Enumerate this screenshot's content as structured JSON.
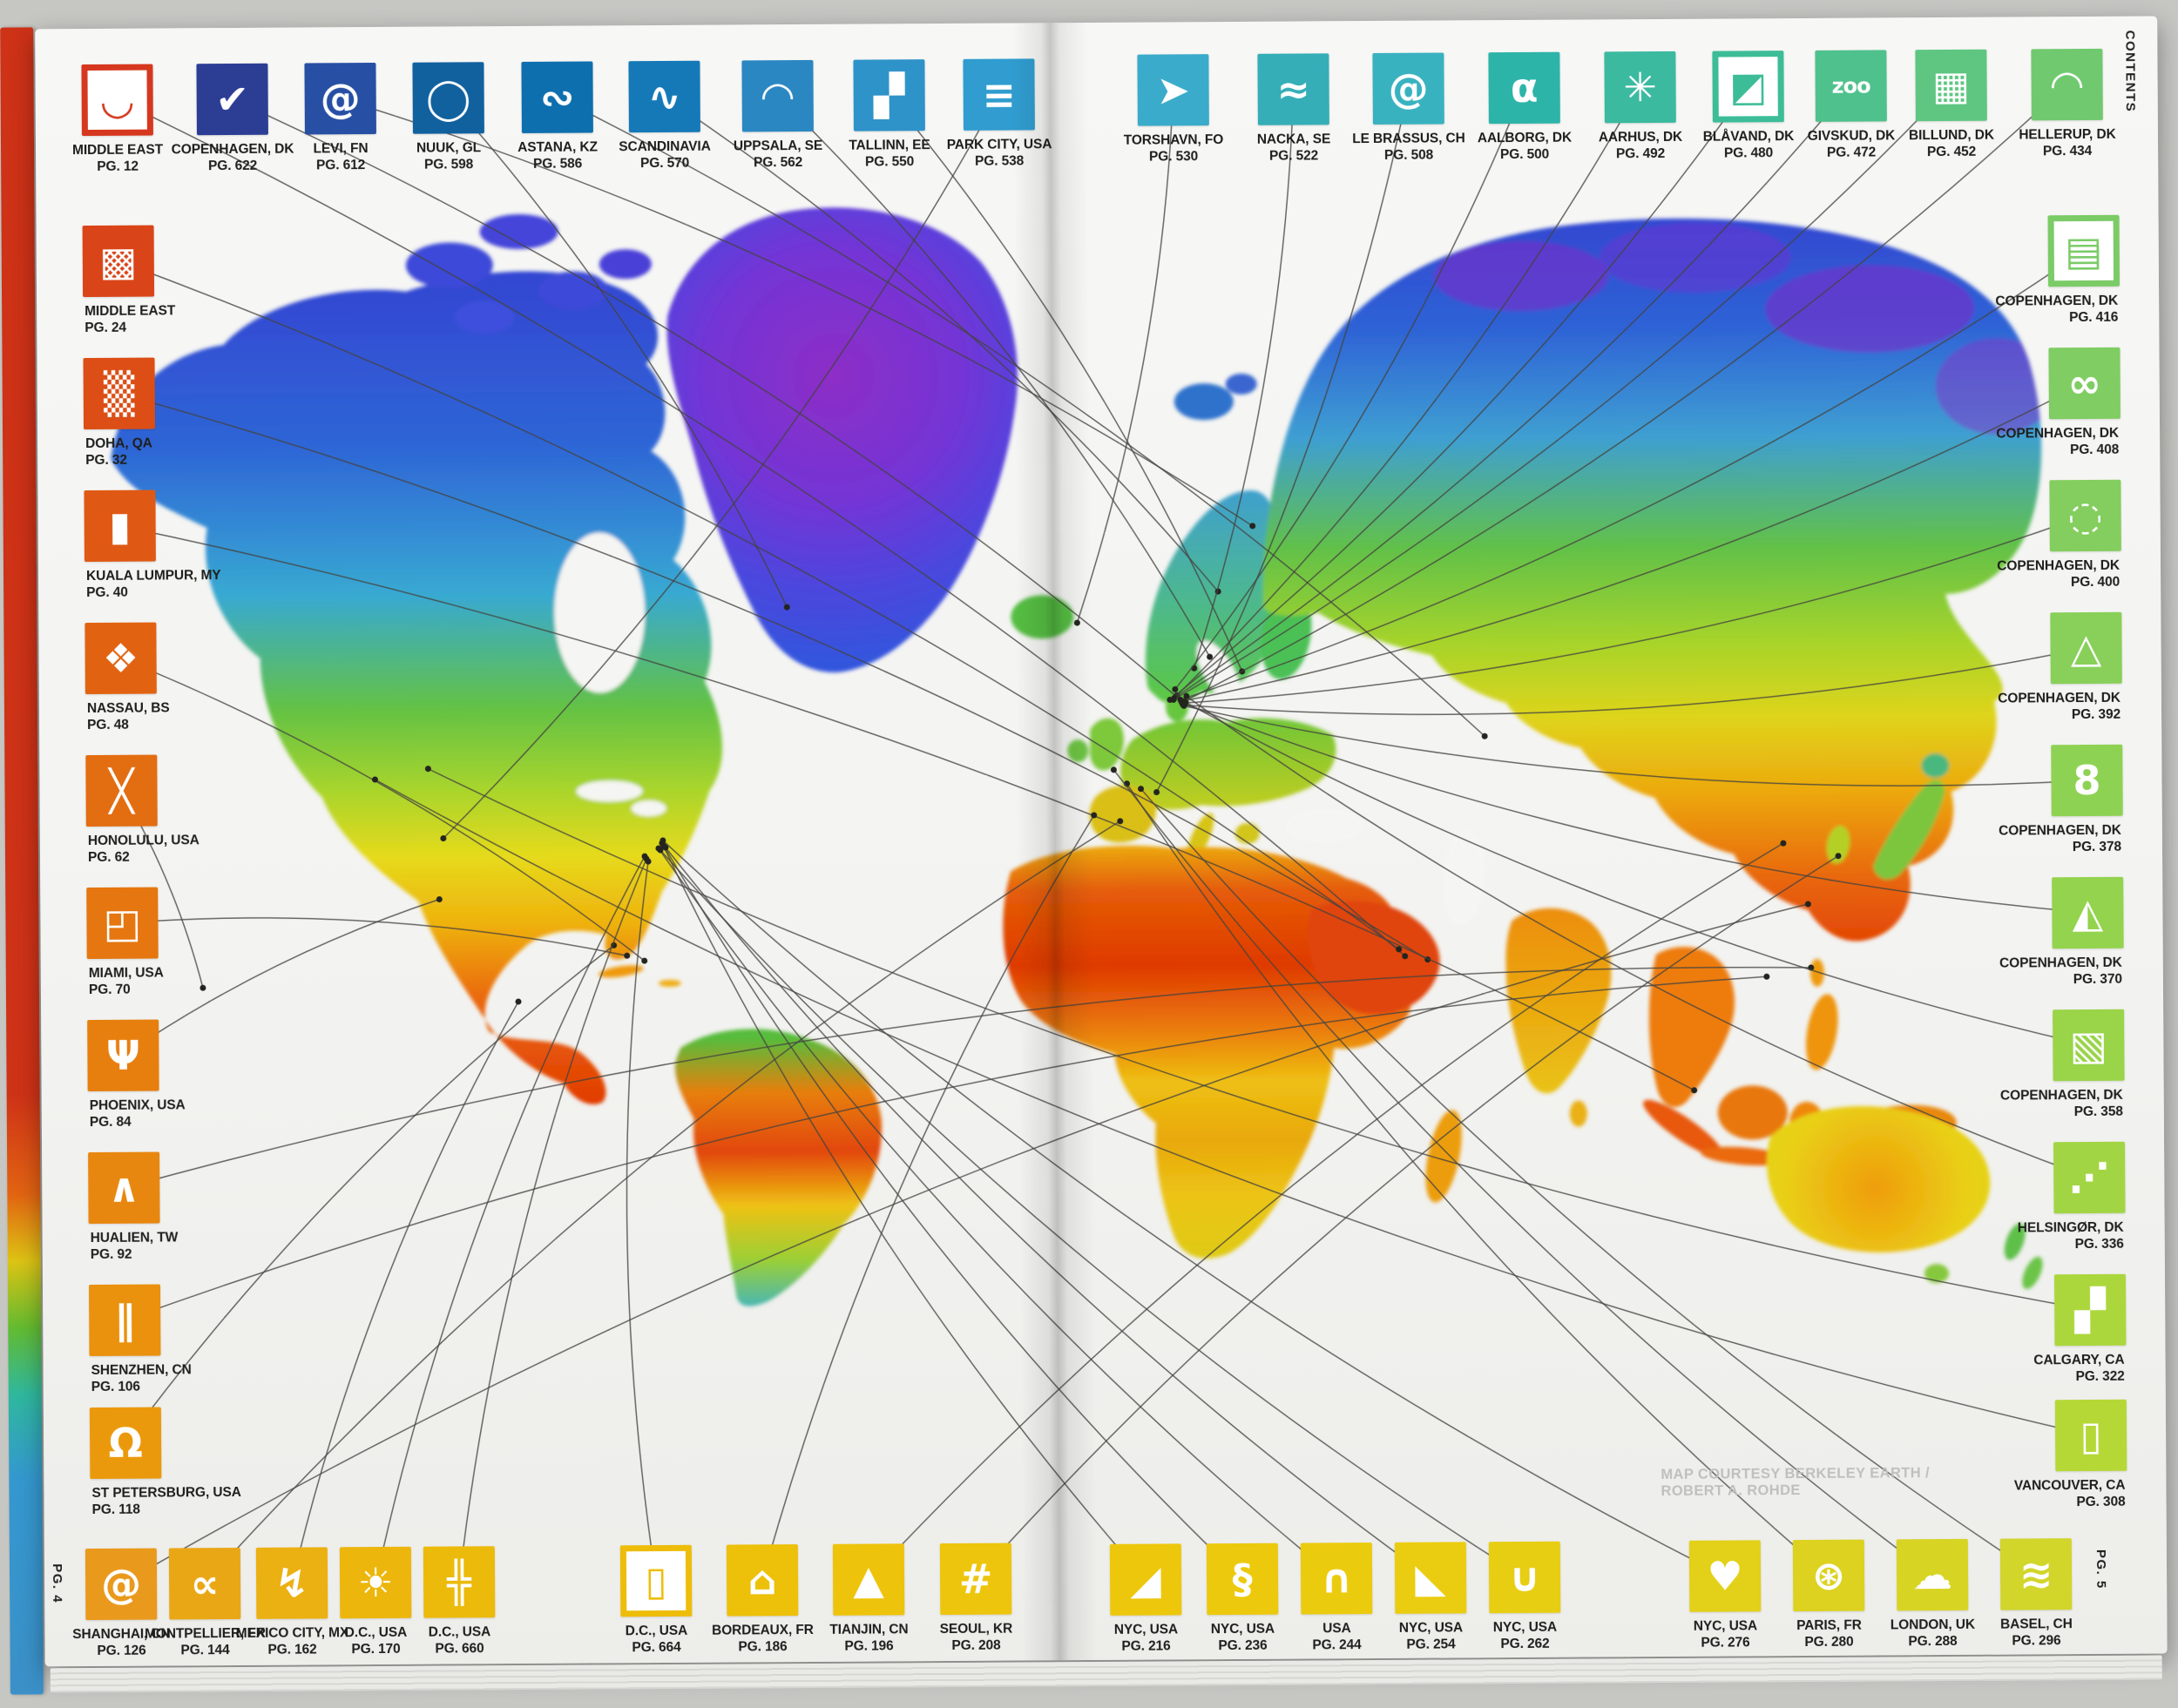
{
  "page": {
    "contents_label": "CONTENTS",
    "left_page_number": "PG. 4",
    "right_page_number": "PG. 5",
    "map_credit": "MAP COURTESY BERKELEY EARTH / ROBERT A. ROHDE"
  },
  "projects": {
    "top_left": [
      {
        "name": "middle-east-12",
        "city": "MIDDLE EAST",
        "page": "PG. 12",
        "color": "#d6381f",
        "glyph": "◡",
        "variant": "outline"
      },
      {
        "name": "copenhagen-622",
        "city": "COPENHAGEN, DK",
        "page": "PG. 622",
        "color": "#2c3e94",
        "glyph": "✔",
        "variant": "solid"
      },
      {
        "name": "levi-612",
        "city": "LEVI, FN",
        "page": "PG. 612",
        "color": "#274fa4",
        "glyph": "@",
        "variant": "solid"
      },
      {
        "name": "nuuk-598",
        "city": "NUUK, GL",
        "page": "PG. 598",
        "color": "#11619f",
        "glyph": "◯",
        "variant": "solid"
      },
      {
        "name": "astana-586",
        "city": "ASTANA, KZ",
        "page": "PG. 586",
        "color": "#0d6fae",
        "glyph": "∾",
        "variant": "solid"
      },
      {
        "name": "scandinavia-570",
        "city": "SCANDINAVIA",
        "page": "PG. 570",
        "color": "#1579b8",
        "glyph": "∿",
        "variant": "solid"
      },
      {
        "name": "uppsala-562",
        "city": "UPPSALA, SE",
        "page": "PG. 562",
        "color": "#2b87c2",
        "glyph": "◠",
        "variant": "solid"
      },
      {
        "name": "tallinn-550",
        "city": "TALLINN, EE",
        "page": "PG. 550",
        "color": "#2e93c9",
        "glyph": "▞",
        "variant": "solid"
      },
      {
        "name": "park-city-538",
        "city": "PARK CITY, USA",
        "page": "PG. 538",
        "color": "#309ccf",
        "glyph": "≡",
        "variant": "solid"
      }
    ],
    "top_right": [
      {
        "name": "torshavn-530",
        "city": "TORSHAVN, FO",
        "page": "PG. 530",
        "color": "#3aabca",
        "glyph": "➤",
        "variant": "solid"
      },
      {
        "name": "nacka-522",
        "city": "NACKA, SE",
        "page": "PG. 522",
        "color": "#35aeb7",
        "glyph": "≈",
        "variant": "solid"
      },
      {
        "name": "le-brassus-508",
        "city": "LE BRASSUS, CH",
        "page": "PG. 508",
        "color": "#39b2c0",
        "glyph": "@",
        "variant": "solid"
      },
      {
        "name": "aalborg-500",
        "city": "AALBORG, DK",
        "page": "PG. 500",
        "color": "#2db4a9",
        "glyph": "α",
        "variant": "solid"
      },
      {
        "name": "aarhus-492",
        "city": "AARHUS, DK",
        "page": "PG. 492",
        "color": "#3bbaa0",
        "glyph": "✳",
        "variant": "solid"
      },
      {
        "name": "blavand-480",
        "city": "BLÅVAND, DK",
        "page": "PG. 480",
        "color": "#3cbd97",
        "glyph": "◩",
        "variant": "outline"
      },
      {
        "name": "givskud-472",
        "city": "GIVSKUD, DK",
        "page": "PG. 472",
        "color": "#4fc18c",
        "glyph": "zoo",
        "variant": "solid"
      },
      {
        "name": "billund-452",
        "city": "BILLUND, DK",
        "page": "PG. 452",
        "color": "#5ec681",
        "glyph": "▦",
        "variant": "solid"
      },
      {
        "name": "hellerup-434",
        "city": "HELLERUP, DK",
        "page": "PG. 434",
        "color": "#70c96f",
        "glyph": "◠",
        "variant": "solid"
      }
    ],
    "left_column": [
      {
        "name": "middle-east-24",
        "city": "MIDDLE EAST",
        "page": "PG. 24",
        "color": "#da4419",
        "glyph": "▩",
        "variant": "solid"
      },
      {
        "name": "doha-32",
        "city": "DOHA, QA",
        "page": "PG. 32",
        "color": "#dc4e15",
        "glyph": "▒",
        "variant": "solid"
      },
      {
        "name": "kuala-lumpur-40",
        "city": "KUALA LUMPUR, MY",
        "page": "PG. 40",
        "color": "#df5915",
        "glyph": "▮",
        "variant": "solid"
      },
      {
        "name": "nassau-48",
        "city": "NASSAU, BS",
        "page": "PG. 48",
        "color": "#e16312",
        "glyph": "❖",
        "variant": "solid"
      },
      {
        "name": "honolulu-62",
        "city": "HONOLULU, USA",
        "page": "PG. 62",
        "color": "#e36d11",
        "glyph": "╳",
        "variant": "solid"
      },
      {
        "name": "miami-70",
        "city": "MIAMI, USA",
        "page": "PG. 70",
        "color": "#e57610",
        "glyph": "◰",
        "variant": "solid"
      },
      {
        "name": "phoenix-84",
        "city": "PHOENIX, USA",
        "page": "PG. 84",
        "color": "#e77f0e",
        "glyph": "Ψ",
        "variant": "solid"
      },
      {
        "name": "hualien-92",
        "city": "HUALIEN, TW",
        "page": "PG. 92",
        "color": "#e8870f",
        "glyph": "∧",
        "variant": "solid"
      },
      {
        "name": "shenzhen-106",
        "city": "SHENZHEN, CN",
        "page": "PG. 106",
        "color": "#ea910d",
        "glyph": "∥",
        "variant": "solid"
      },
      {
        "name": "st-petersburg-118",
        "city": "ST PETERSBURG, USA",
        "page": "PG. 118",
        "color": "#eb990c",
        "glyph": "Ω",
        "variant": "solid"
      }
    ],
    "right_column": [
      {
        "name": "copenhagen-416",
        "city": "COPENHAGEN, DK",
        "page": "PG. 416",
        "color": "#7bcb67",
        "glyph": "▤",
        "variant": "outline"
      },
      {
        "name": "copenhagen-408",
        "city": "COPENHAGEN, DK",
        "page": "PG. 408",
        "color": "#7fcd63",
        "glyph": "∞",
        "variant": "solid"
      },
      {
        "name": "copenhagen-400",
        "city": "COPENHAGEN, DK",
        "page": "PG. 400",
        "color": "#83ce5e",
        "glyph": "◌",
        "variant": "solid"
      },
      {
        "name": "copenhagen-392",
        "city": "COPENHAGEN, DK",
        "page": "PG. 392",
        "color": "#88d059",
        "glyph": "△",
        "variant": "solid"
      },
      {
        "name": "copenhagen-378",
        "city": "COPENHAGEN, DK",
        "page": "PG. 378",
        "color": "#8ed254",
        "glyph": "8",
        "variant": "solid"
      },
      {
        "name": "copenhagen-370",
        "city": "COPENHAGEN, DK",
        "page": "PG. 370",
        "color": "#93d34e",
        "glyph": "◭",
        "variant": "solid"
      },
      {
        "name": "copenhagen-358",
        "city": "COPENHAGEN, DK",
        "page": "PG. 358",
        "color": "#99d449",
        "glyph": "▧",
        "variant": "solid"
      },
      {
        "name": "helsingor-336",
        "city": "HELSINGØR, DK",
        "page": "PG. 336",
        "color": "#a2d543",
        "glyph": "⋰",
        "variant": "solid"
      },
      {
        "name": "calgary-322",
        "city": "CALGARY, CA",
        "page": "PG. 322",
        "color": "#abd73d",
        "glyph": "▞",
        "variant": "solid"
      },
      {
        "name": "vancouver-308",
        "city": "VANCOUVER, CA",
        "page": "PG. 308",
        "color": "#b5d837",
        "glyph": "▯",
        "variant": "solid"
      }
    ],
    "bottom_left": [
      {
        "name": "shanghai-126",
        "city": "SHANGHAI, CN",
        "page": "PG. 126",
        "color": "#e9991c",
        "glyph": "@",
        "variant": "solid"
      },
      {
        "name": "montpellier-144",
        "city": "MONTPELLIER, FR",
        "page": "PG. 144",
        "color": "#eaa715",
        "glyph": "∝",
        "variant": "solid"
      },
      {
        "name": "mexico-city-162",
        "city": "MEXICO CITY, MX",
        "page": "PG. 162",
        "color": "#ebb011",
        "glyph": "↯",
        "variant": "solid"
      },
      {
        "name": "dc-170",
        "city": "D.C., USA",
        "page": "PG. 170",
        "color": "#ecb60c",
        "glyph": "☀",
        "variant": "solid"
      },
      {
        "name": "dc-660",
        "city": "D.C., USA",
        "page": "PG. 660",
        "color": "#ecba0a",
        "glyph": "╬",
        "variant": "solid"
      },
      {
        "name": "dc-664",
        "city": "D.C., USA",
        "page": "PG. 664",
        "color": "#edbd09",
        "glyph": "▯",
        "variant": "outline"
      },
      {
        "name": "bordeaux-186",
        "city": "BORDEAUX, FR",
        "page": "PG. 186",
        "color": "#edc009",
        "glyph": "⌂",
        "variant": "solid"
      },
      {
        "name": "tianjin-196",
        "city": "TIANJIN, CN",
        "page": "PG. 196",
        "color": "#eec30b",
        "glyph": "▲",
        "variant": "solid"
      },
      {
        "name": "seoul-208",
        "city": "SEOUL, KR",
        "page": "PG. 208",
        "color": "#edc50c",
        "glyph": "#",
        "variant": "solid"
      }
    ],
    "bottom_right": [
      {
        "name": "nyc-216",
        "city": "NYC, USA",
        "page": "PG. 216",
        "color": "#edc70b",
        "glyph": "◢",
        "variant": "solid"
      },
      {
        "name": "nyc-236",
        "city": "NYC, USA",
        "page": "PG. 236",
        "color": "#ecc90d",
        "glyph": "§",
        "variant": "solid"
      },
      {
        "name": "usa-244",
        "city": "USA",
        "page": "PG. 244",
        "color": "#ebcb0e",
        "glyph": "∩",
        "variant": "solid"
      },
      {
        "name": "nyc-254",
        "city": "NYC, USA",
        "page": "PG. 254",
        "color": "#eacd10",
        "glyph": "◣",
        "variant": "solid"
      },
      {
        "name": "nyc-262",
        "city": "NYC, USA",
        "page": "PG. 262",
        "color": "#e7ce12",
        "glyph": "∪",
        "variant": "solid"
      },
      {
        "name": "nyc-276",
        "city": "NYC, USA",
        "page": "PG. 276",
        "color": "#e3d018",
        "glyph": "♥",
        "variant": "solid"
      },
      {
        "name": "paris-280",
        "city": "PARIS, FR",
        "page": "PG. 280",
        "color": "#dcd21f",
        "glyph": "⊛",
        "variant": "solid"
      },
      {
        "name": "london-288",
        "city": "LONDON, UK",
        "page": "PG. 288",
        "color": "#d7d424",
        "glyph": "☁",
        "variant": "solid"
      },
      {
        "name": "basel-296",
        "city": "BASEL, CH",
        "page": "PG. 296",
        "color": "#d2d52a",
        "glyph": "≋",
        "variant": "solid"
      }
    ]
  }
}
